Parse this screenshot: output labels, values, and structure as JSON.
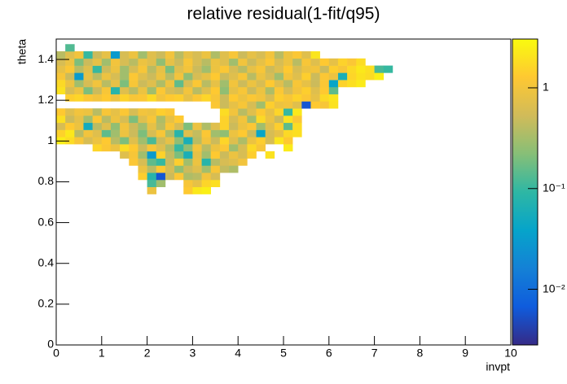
{
  "chart_data": {
    "type": "heatmap",
    "title": "relative residual(1-fit/q95)",
    "xlabel": "invpt",
    "ylabel": "theta",
    "xlim": [
      0,
      10
    ],
    "ylim": [
      0,
      1.5
    ],
    "xticks": [
      0,
      1,
      2,
      3,
      4,
      5,
      6,
      7,
      8,
      9,
      10
    ],
    "yticks": [
      0,
      0.2,
      0.4,
      0.6,
      0.8,
      1,
      1.2,
      1.4
    ],
    "zlim": [
      0.0028,
      3.05
    ],
    "zscale": "log",
    "zticks": [
      {
        "value": 0.01,
        "label": "10⁻²"
      },
      {
        "value": 0.1,
        "label": "10⁻¹"
      },
      1
    ],
    "colorscale": [
      "#352a87",
      "#0f5cdd",
      "#1481d6",
      "#06a4ca",
      "#2eb7a4",
      "#87bf77",
      "#d1bb59",
      "#fec832",
      "#f9fb0e"
    ],
    "xbins": [
      0,
      0.2,
      0.4,
      0.6,
      0.8,
      1,
      1.2,
      1.4,
      1.6,
      1.8,
      2,
      2.2,
      2.4,
      2.6,
      2.8,
      3,
      3.2,
      3.4,
      3.6,
      3.8,
      4,
      4.2,
      4.4,
      4.6,
      4.8,
      5,
      5.2,
      5.4,
      5.6,
      5.8,
      6,
      6.2,
      6.4,
      6.6,
      6.8,
      7,
      7.2,
      7.4
    ],
    "ybins": [
      0.74,
      0.775,
      0.81,
      0.845,
      0.88,
      0.915,
      0.95,
      0.985,
      1.02,
      1.055,
      1.09,
      1.125,
      1.16,
      1.195,
      1.23,
      1.265,
      1.3,
      1.335,
      1.37,
      1.405,
      1.44,
      1.475
    ],
    "z": [
      [
        null,
        null,
        null,
        null,
        null,
        null,
        null,
        null,
        null,
        null,
        0.9,
        null,
        null,
        null,
        1.3,
        2.2,
        2.5,
        null,
        null,
        null,
        null,
        null,
        null,
        null,
        null,
        null,
        null,
        null,
        null,
        null,
        null,
        null,
        null,
        null,
        null,
        null,
        null
      ],
      [
        null,
        null,
        null,
        null,
        null,
        null,
        null,
        null,
        null,
        null,
        0.12,
        0.3,
        null,
        null,
        1.1,
        0.8,
        1.6,
        1.9,
        null,
        null,
        null,
        null,
        null,
        null,
        null,
        null,
        null,
        null,
        null,
        null,
        null,
        null,
        null,
        null,
        null,
        null,
        null
      ],
      [
        null,
        null,
        null,
        null,
        null,
        null,
        null,
        null,
        null,
        1.4,
        0.08,
        0.006,
        0.5,
        1.2,
        0.35,
        0.4,
        1.0,
        0.6,
        null,
        null,
        null,
        null,
        null,
        null,
        null,
        null,
        null,
        null,
        null,
        null,
        null,
        null,
        null,
        null,
        null,
        null,
        null
      ],
      [
        null,
        null,
        null,
        null,
        null,
        null,
        null,
        null,
        null,
        0.9,
        0.4,
        1.3,
        0.6,
        0.25,
        0.5,
        0.7,
        0.3,
        1.1,
        0.45,
        0.35,
        null,
        null,
        null,
        null,
        null,
        null,
        null,
        null,
        null,
        null,
        null,
        null,
        null,
        null,
        null,
        null,
        null
      ],
      [
        null,
        null,
        null,
        null,
        null,
        null,
        null,
        null,
        1.2,
        0.6,
        0.15,
        0.1,
        0.5,
        1.4,
        0.3,
        0.9,
        0.08,
        0.4,
        0.6,
        0.7,
        1.0,
        null,
        null,
        null,
        null,
        null,
        null,
        null,
        null,
        null,
        null,
        null,
        null,
        null,
        null,
        null,
        null
      ],
      [
        null,
        null,
        null,
        null,
        null,
        null,
        null,
        0.7,
        1.1,
        0.3,
        0.03,
        1.5,
        0.45,
        0.2,
        0.06,
        0.8,
        0.3,
        1.3,
        0.5,
        0.9,
        0.6,
        1.4,
        null,
        2.0,
        null,
        null,
        null,
        null,
        null,
        null,
        null,
        null,
        null,
        null,
        null,
        null,
        null
      ],
      [
        null,
        null,
        null,
        null,
        1.6,
        1.2,
        0.9,
        1.8,
        1.3,
        0.5,
        1.1,
        0.7,
        0.35,
        0.1,
        0.25,
        1.0,
        0.4,
        0.9,
        1.2,
        0.3,
        0.6,
        1.7,
        1.1,
        null,
        null,
        2.3,
        null,
        null,
        null,
        null,
        null,
        null,
        null,
        null,
        null,
        null,
        null
      ],
      [
        2.4,
        1.8,
        1.1,
        0.6,
        0.9,
        1.3,
        0.4,
        0.2,
        0.7,
        0.3,
        0.12,
        0.5,
        0.8,
        0.25,
        0.06,
        0.4,
        1.0,
        0.5,
        1.6,
        0.7,
        0.35,
        0.9,
        1.4,
        0.6,
        2.1,
        1.3,
        null,
        null,
        null,
        null,
        null,
        null,
        null,
        null,
        null,
        null,
        null
      ],
      [
        1.5,
        2.2,
        0.4,
        1.0,
        0.7,
        0.15,
        0.3,
        0.9,
        0.5,
        0.2,
        0.6,
        1.1,
        0.35,
        0.08,
        0.7,
        0.45,
        1.2,
        0.3,
        0.25,
        0.9,
        1.3,
        0.5,
        0.04,
        0.6,
        0.8,
        1.7,
        1.9,
        null,
        null,
        null,
        null,
        null,
        null,
        null,
        null,
        null,
        null
      ],
      [
        0.6,
        1.3,
        0.9,
        0.05,
        0.4,
        0.7,
        0.25,
        1.0,
        0.5,
        0.3,
        0.8,
        0.4,
        1.1,
        0.6,
        0.2,
        0.9,
        0.35,
        0.7,
        1.5,
        0.5,
        0.9,
        1.2,
        0.3,
        0.7,
        1.4,
        0.15,
        1.8,
        null,
        null,
        null,
        null,
        null,
        null,
        null,
        null,
        null,
        null
      ],
      [
        1.9,
        0.5,
        0.8,
        0.3,
        1.2,
        0.4,
        0.9,
        0.6,
        0.2,
        0.7,
        1.1,
        0.35,
        0.8,
        1.3,
        null,
        null,
        null,
        null,
        1.5,
        0.6,
        1.0,
        0.3,
        1.7,
        0.9,
        0.5,
        2.0,
        1.2,
        null,
        null,
        null,
        null,
        null,
        null,
        null,
        null,
        null,
        null
      ],
      [
        1.3,
        0.7,
        1.0,
        0.9,
        0.4,
        1.1,
        0.8,
        1.2,
        0.6,
        1.0,
        0.9,
        1.4,
        1.2,
        null,
        null,
        null,
        null,
        null,
        1.8,
        1.0,
        0.4,
        0.7,
        1.3,
        0.8,
        1.6,
        0.1,
        2.2,
        null,
        null,
        null,
        null,
        null,
        null,
        null,
        null,
        null,
        null
      ],
      [
        null,
        null,
        null,
        null,
        null,
        null,
        null,
        null,
        null,
        null,
        null,
        null,
        null,
        null,
        null,
        null,
        null,
        1.2,
        0.5,
        0.8,
        1.1,
        0.6,
        0.3,
        1.4,
        0.9,
        1.0,
        0.7,
        0.006,
        1.3,
        1.1,
        2.0,
        null,
        null,
        null,
        null,
        null,
        null
      ],
      [
        null,
        1.4,
        1.6,
        1.2,
        1.0,
        1.3,
        0.9,
        1.5,
        1.1,
        1.2,
        1.7,
        1.0,
        1.3,
        1.4,
        0.8,
        1.2,
        1.6,
        1.1,
        0.5,
        1.3,
        0.9,
        1.2,
        1.0,
        0.6,
        1.4,
        1.1,
        1.5,
        1.2,
        0.8,
        1.7,
        2.1,
        null,
        null,
        null,
        null,
        null,
        null
      ],
      [
        2.0,
        0.6,
        0.9,
        0.2,
        0.5,
        1.1,
        0.08,
        0.7,
        0.4,
        0.9,
        0.3,
        1.2,
        0.6,
        0.5,
        1.0,
        0.4,
        0.7,
        1.3,
        0.25,
        0.8,
        1.1,
        0.5,
        0.9,
        0.35,
        1.2,
        0.6,
        1.0,
        1.4,
        0.7,
        1.3,
        0.15,
        null,
        null,
        null,
        null,
        null,
        null
      ],
      [
        1.7,
        0.9,
        0.3,
        0.6,
        1.0,
        0.4,
        0.8,
        0.2,
        1.1,
        0.5,
        0.7,
        0.35,
        0.9,
        0.15,
        0.6,
        1.2,
        0.4,
        0.8,
        0.3,
        1.0,
        0.5,
        0.9,
        0.6,
        1.3,
        0.7,
        0.4,
        1.1,
        0.8,
        0.5,
        1.2,
        0.04,
        1.5,
        1.9,
        2.3,
        null,
        null,
        null
      ],
      [
        1.1,
        0.5,
        0.03,
        0.8,
        0.4,
        0.9,
        0.6,
        0.3,
        1.2,
        0.7,
        0.5,
        0.9,
        0.4,
        1.0,
        0.25,
        0.6,
        0.8,
        1.3,
        0.5,
        0.7,
        1.1,
        0.4,
        0.9,
        0.6,
        0.3,
        1.0,
        0.7,
        1.4,
        0.5,
        1.2,
        0.9,
        0.06,
        1.6,
        2.0,
        1.8,
        2.5,
        null
      ],
      [
        0.8,
        1.2,
        0.4,
        0.7,
        0.1,
        0.5,
        0.9,
        0.3,
        0.6,
        1.1,
        0.4,
        0.8,
        0.2,
        0.7,
        1.0,
        0.5,
        0.3,
        0.9,
        1.2,
        0.6,
        0.4,
        0.8,
        1.1,
        0.5,
        0.7,
        1.3,
        0.6,
        0.9,
        1.0,
        0.5,
        1.4,
        1.1,
        1.7,
        2.2,
        1.9,
        0.12,
        0.1
      ],
      [
        0.6,
        0.9,
        0.2,
        0.5,
        0.8,
        0.3,
        1.0,
        0.6,
        0.4,
        0.9,
        0.7,
        0.25,
        0.8,
        0.5,
        1.1,
        0.6,
        0.4,
        0.9,
        0.7,
        0.3,
        1.0,
        0.5,
        0.8,
        1.2,
        0.6,
        0.9,
        0.4,
        1.1,
        0.7,
        1.3,
        0.8,
        1.5,
        1.2,
        1.8,
        null,
        null,
        null
      ],
      [
        0.4,
        0.7,
        1.0,
        0.1,
        0.5,
        0.8,
        0.03,
        0.6,
        0.9,
        0.3,
        0.7,
        0.5,
        1.0,
        0.4,
        0.8,
        0.6,
        0.9,
        0.35,
        0.7,
        1.1,
        0.5,
        0.8,
        0.6,
        1.0,
        0.4,
        0.9,
        1.2,
        0.7,
        2.1,
        null,
        null,
        null,
        null,
        null,
        null,
        null,
        null
      ],
      [
        null,
        0.13,
        null,
        null,
        null,
        null,
        null,
        null,
        null,
        null,
        null,
        null,
        null,
        null,
        null,
        null,
        null,
        null,
        null,
        null,
        null,
        null,
        null,
        null,
        null,
        null,
        null,
        null,
        null,
        null,
        null,
        null,
        null,
        null,
        null,
        null,
        null
      ]
    ]
  }
}
